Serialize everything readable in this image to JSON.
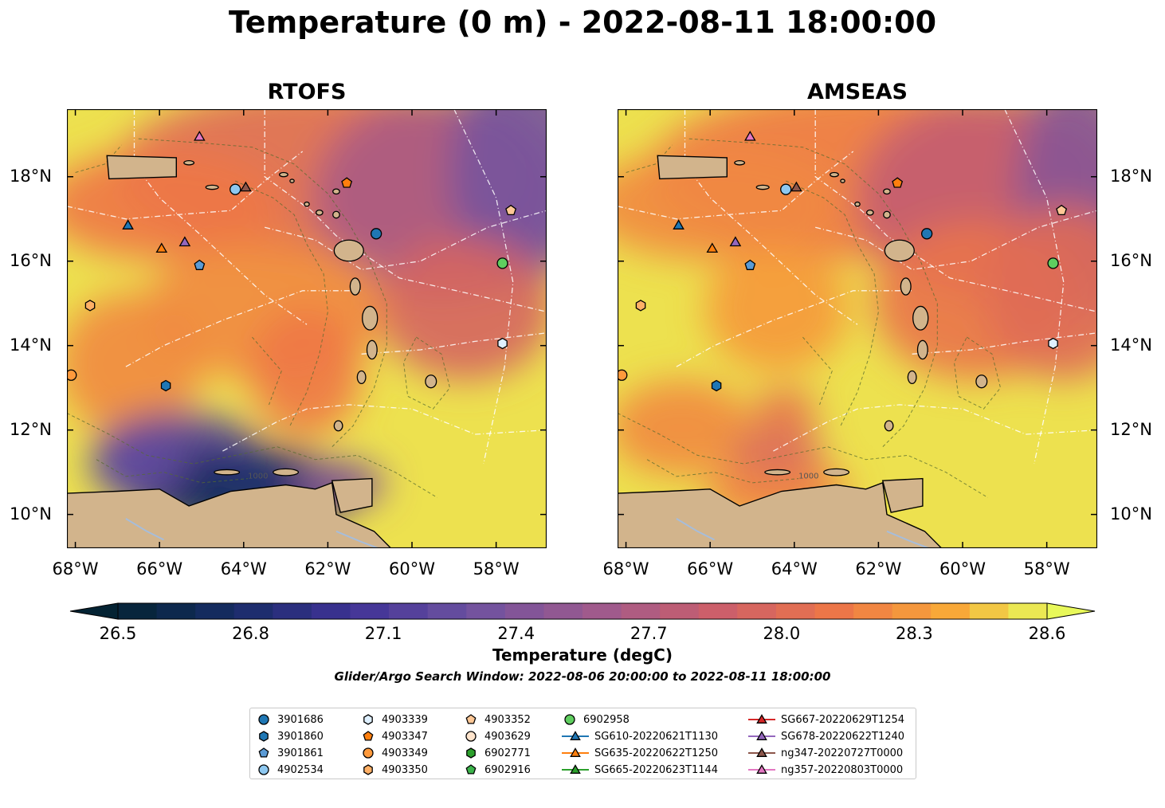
{
  "title": "Temperature (0 m) - 2022-08-11 18:00:00",
  "panels": [
    {
      "title": "RTOFS",
      "model": "rtofs"
    },
    {
      "title": "AMSEAS",
      "model": "amseas"
    }
  ],
  "axes": {
    "lon_labels": [
      "68°W",
      "66°W",
      "64°W",
      "62°W",
      "60°W",
      "58°W"
    ],
    "lon_values": [
      -68,
      -66,
      -64,
      -62,
      -60,
      -58
    ],
    "lat_labels": [
      "18°N",
      "16°N",
      "14°N",
      "12°N",
      "10°N"
    ],
    "lat_values": [
      18,
      16,
      14,
      12,
      10
    ],
    "lon_range": [
      -68.2,
      -56.8
    ],
    "lat_range": [
      9.2,
      19.6
    ]
  },
  "contour_label": "1000",
  "colorbar": {
    "label": "Temperature (degC)",
    "tick_labels": [
      "26.5",
      "26.8",
      "27.1",
      "27.4",
      "27.7",
      "28.0",
      "28.3",
      "28.6"
    ],
    "min": 26.5,
    "max": 28.6,
    "colormap": "thermal",
    "extend": "both"
  },
  "search_window": "Glider/Argo Search Window: 2022-08-06 20:00:00 to 2022-08-11 18:00:00",
  "legend": {
    "columns": [
      [
        {
          "label": "3901686",
          "marker": "circle",
          "color": "#1f77b4"
        },
        {
          "label": "3901860",
          "marker": "hexagon",
          "color": "#1f77b4"
        },
        {
          "label": "3901861",
          "marker": "pentagon",
          "color": "#5b9bd5"
        },
        {
          "label": "4902534",
          "marker": "circle",
          "color": "#8ec8f0"
        }
      ],
      [
        {
          "label": "4903339",
          "marker": "hexagon",
          "color": "#dff0ff"
        },
        {
          "label": "4903347",
          "marker": "pentagon",
          "color": "#ff7f0e"
        },
        {
          "label": "4903349",
          "marker": "circle",
          "color": "#ff9a3c"
        },
        {
          "label": "4903350",
          "marker": "hexagon",
          "color": "#ffb066"
        }
      ],
      [
        {
          "label": "4903352",
          "marker": "pentagon",
          "color": "#ffc896"
        },
        {
          "label": "4903629",
          "marker": "circle",
          "color": "#ffe4cc"
        },
        {
          "label": "6902771",
          "marker": "hexagon",
          "color": "#2ca02c"
        },
        {
          "label": "6902916",
          "marker": "pentagon",
          "color": "#3cb44b"
        }
      ],
      [
        {
          "label": "6902958",
          "marker": "circle",
          "color": "#5fce5f"
        },
        {
          "label": "SG610-20220621T1130",
          "marker": "triangle",
          "color": "#1f77b4"
        },
        {
          "label": "SG635-20220622T1250",
          "marker": "triangle",
          "color": "#ff7f0e"
        },
        {
          "label": "SG665-20220623T1144",
          "marker": "triangle",
          "color": "#2ca02c"
        }
      ],
      [
        {
          "label": "SG667-20220629T1254",
          "marker": "triangle",
          "color": "#d62728"
        },
        {
          "label": "SG678-20220622T1240",
          "marker": "triangle",
          "color": "#9467bd"
        },
        {
          "label": "ng347-20220727T0000",
          "marker": "triangle",
          "color": "#8c564b"
        },
        {
          "label": "ng357-20220803T0000",
          "marker": "triangle",
          "color": "#e377c2"
        }
      ]
    ]
  },
  "platforms": [
    {
      "id": "3901686",
      "lon": -60.85,
      "lat": 16.65,
      "marker": "circle",
      "color": "#1f77b4"
    },
    {
      "id": "3901860",
      "lon": -65.85,
      "lat": 13.05,
      "marker": "hexagon",
      "color": "#1f77b4"
    },
    {
      "id": "3901861",
      "lon": -65.05,
      "lat": 15.9,
      "marker": "pentagon",
      "color": "#5b9bd5"
    },
    {
      "id": "4902534",
      "lon": -64.2,
      "lat": 17.7,
      "marker": "circle",
      "color": "#8ec8f0"
    },
    {
      "id": "4903339",
      "lon": -57.85,
      "lat": 14.05,
      "marker": "hexagon",
      "color": "#dff0ff"
    },
    {
      "id": "4903347",
      "lon": -61.55,
      "lat": 17.85,
      "marker": "pentagon",
      "color": "#ff7f0e"
    },
    {
      "id": "4903349",
      "lon": -68.1,
      "lat": 13.3,
      "marker": "circle",
      "color": "#ff9a3c"
    },
    {
      "id": "4903350",
      "lon": -67.65,
      "lat": 14.95,
      "marker": "hexagon",
      "color": "#ffb066"
    },
    {
      "id": "4903352",
      "lon": -57.65,
      "lat": 17.2,
      "marker": "pentagon",
      "color": "#ffc896"
    },
    {
      "id": "6902958",
      "lon": -57.85,
      "lat": 15.95,
      "marker": "circle",
      "color": "#5fce5f"
    },
    {
      "id": "SG610-20220621T1130",
      "lon": -66.75,
      "lat": 16.85,
      "marker": "triangle",
      "color": "#1f77b4"
    },
    {
      "id": "SG635-20220622T1250",
      "lon": -65.95,
      "lat": 16.3,
      "marker": "triangle",
      "color": "#ff7f0e"
    },
    {
      "id": "SG678-20220622T1240",
      "lon": -65.4,
      "lat": 16.45,
      "marker": "triangle",
      "color": "#9467bd"
    },
    {
      "id": "ng347-20220727T0000",
      "lon": -63.95,
      "lat": 17.75,
      "marker": "triangle",
      "color": "#8c564b"
    },
    {
      "id": "ng357-20220803T0000",
      "lon": -65.05,
      "lat": 18.95,
      "marker": "triangle",
      "color": "#e377c2"
    }
  ]
}
